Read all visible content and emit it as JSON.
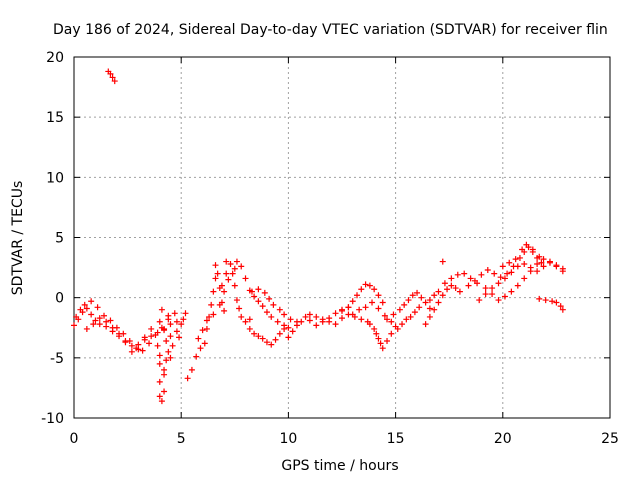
{
  "chart_data": {
    "type": "scatter",
    "title": "Day 186 of 2024, Sidereal Day-to-day VTEC variation (SDTVAR) for receiver flin",
    "xlabel": "GPS time / hours",
    "ylabel": "SDTVAR / TECUs",
    "xlim": [
      0,
      25
    ],
    "ylim": [
      -10,
      20
    ],
    "xticks": [
      0,
      5,
      10,
      15,
      20,
      25
    ],
    "yticks": [
      -10,
      -5,
      0,
      5,
      10,
      15,
      20
    ],
    "grid": true,
    "marker": "+",
    "color": "#ff0000",
    "series": [
      {
        "name": "SDTVAR",
        "points": [
          [
            1.6,
            18.8
          ],
          [
            1.7,
            18.6
          ],
          [
            1.8,
            18.3
          ],
          [
            1.9,
            18.0
          ],
          [
            0.0,
            -2.3
          ],
          [
            0.2,
            -1.8
          ],
          [
            0.4,
            -1.2
          ],
          [
            0.6,
            -0.9
          ],
          [
            0.8,
            -1.4
          ],
          [
            1.0,
            -1.9
          ],
          [
            1.2,
            -2.2
          ],
          [
            1.5,
            -2.4
          ],
          [
            1.8,
            -2.8
          ],
          [
            2.1,
            -3.2
          ],
          [
            2.4,
            -3.6
          ],
          [
            2.7,
            -4.0
          ],
          [
            3.0,
            -3.9
          ],
          [
            3.3,
            -3.5
          ],
          [
            3.6,
            -3.2
          ],
          [
            3.9,
            -2.9
          ],
          [
            4.2,
            -2.7
          ],
          [
            4.5,
            -2.2
          ],
          [
            4.8,
            -2.0
          ],
          [
            0.1,
            -1.6
          ],
          [
            0.3,
            -1.0
          ],
          [
            0.5,
            -0.6
          ],
          [
            0.8,
            -0.3
          ],
          [
            1.1,
            -0.8
          ],
          [
            1.4,
            -1.5
          ],
          [
            1.7,
            -1.9
          ],
          [
            2.0,
            -2.5
          ],
          [
            2.3,
            -3.0
          ],
          [
            2.6,
            -3.6
          ],
          [
            2.9,
            -4.2
          ],
          [
            3.2,
            -4.4
          ],
          [
            3.5,
            -3.8
          ],
          [
            3.8,
            -3.1
          ],
          [
            4.1,
            -2.5
          ],
          [
            4.4,
            -1.8
          ],
          [
            4.7,
            -1.3
          ],
          [
            0.6,
            -2.6
          ],
          [
            0.9,
            -2.2
          ],
          [
            1.2,
            -1.7
          ],
          [
            1.5,
            -2.0
          ],
          [
            1.8,
            -2.5
          ],
          [
            2.1,
            -3.0
          ],
          [
            2.4,
            -3.7
          ],
          [
            2.7,
            -4.5
          ],
          [
            3.0,
            -4.3
          ],
          [
            3.3,
            -3.3
          ],
          [
            3.6,
            -2.6
          ],
          [
            3.9,
            -4.0
          ],
          [
            4.0,
            -5.5
          ],
          [
            4.0,
            -7.0
          ],
          [
            4.0,
            -8.2
          ],
          [
            4.1,
            -8.6
          ],
          [
            4.2,
            -7.8
          ],
          [
            4.2,
            -6.4
          ],
          [
            4.3,
            -5.2
          ],
          [
            4.4,
            -4.5
          ],
          [
            4.5,
            -5.0
          ],
          [
            4.5,
            -3.2
          ],
          [
            4.1,
            -1.0
          ],
          [
            4.0,
            -2.0
          ],
          [
            4.2,
            -6.0
          ],
          [
            4.0,
            -4.8
          ],
          [
            4.3,
            -3.6
          ],
          [
            4.2,
            -2.6
          ],
          [
            4.4,
            -1.5
          ],
          [
            4.6,
            -4.0
          ],
          [
            4.8,
            -2.8
          ],
          [
            5.0,
            -2.2
          ],
          [
            5.1,
            -1.8
          ],
          [
            5.2,
            -1.3
          ],
          [
            4.9,
            -3.3
          ],
          [
            5.3,
            -6.7
          ],
          [
            5.5,
            -6.0
          ],
          [
            5.7,
            -4.9
          ],
          [
            5.9,
            -4.2
          ],
          [
            6.1,
            -3.8
          ],
          [
            6.2,
            -2.6
          ],
          [
            6.3,
            -1.6
          ],
          [
            6.4,
            -0.6
          ],
          [
            6.5,
            0.5
          ],
          [
            6.6,
            1.6
          ],
          [
            6.6,
            2.7
          ],
          [
            6.7,
            2.0
          ],
          [
            6.8,
            0.8
          ],
          [
            6.9,
            -0.4
          ],
          [
            7.0,
            -1.1
          ],
          [
            5.8,
            -3.4
          ],
          [
            6.0,
            -2.7
          ],
          [
            6.2,
            -1.9
          ],
          [
            6.5,
            -1.4
          ],
          [
            6.8,
            -0.6
          ],
          [
            7.0,
            0.5
          ],
          [
            7.1,
            2.0
          ],
          [
            7.1,
            3.0
          ],
          [
            7.3,
            2.8
          ],
          [
            7.4,
            2.0
          ],
          [
            7.5,
            1.0
          ],
          [
            7.6,
            -0.2
          ],
          [
            7.7,
            -0.9
          ],
          [
            7.8,
            -1.6
          ],
          [
            8.0,
            -2.0
          ],
          [
            8.2,
            -1.8
          ],
          [
            6.9,
            1.0
          ],
          [
            7.2,
            1.5
          ],
          [
            7.5,
            2.4
          ],
          [
            7.6,
            3.0
          ],
          [
            7.8,
            2.6
          ],
          [
            8.0,
            1.6
          ],
          [
            8.2,
            0.6
          ],
          [
            8.4,
            0.1
          ],
          [
            8.6,
            -0.3
          ],
          [
            8.8,
            -0.7
          ],
          [
            9.0,
            -1.2
          ],
          [
            9.2,
            -1.6
          ],
          [
            9.5,
            -2.0
          ],
          [
            9.8,
            -2.3
          ],
          [
            10.0,
            -2.5
          ],
          [
            8.3,
            0.5
          ],
          [
            8.6,
            0.7
          ],
          [
            8.9,
            0.4
          ],
          [
            9.1,
            -0.1
          ],
          [
            9.3,
            -0.6
          ],
          [
            9.6,
            -1.0
          ],
          [
            9.8,
            -1.4
          ],
          [
            10.1,
            -1.8
          ],
          [
            10.4,
            -2.0
          ],
          [
            8.2,
            -2.6
          ],
          [
            8.4,
            -3.0
          ],
          [
            8.6,
            -3.2
          ],
          [
            8.8,
            -3.4
          ],
          [
            9.0,
            -3.7
          ],
          [
            9.2,
            -3.9
          ],
          [
            9.4,
            -3.5
          ],
          [
            9.6,
            -3.0
          ],
          [
            9.8,
            -2.6
          ],
          [
            10.0,
            -3.3
          ],
          [
            10.2,
            -2.8
          ],
          [
            10.4,
            -2.3
          ],
          [
            10.6,
            -2.0
          ],
          [
            10.8,
            -1.6
          ],
          [
            11.0,
            -1.4
          ],
          [
            11.3,
            -1.6
          ],
          [
            11.6,
            -2.0
          ],
          [
            11.9,
            -1.7
          ],
          [
            12.2,
            -1.3
          ],
          [
            12.5,
            -1.0
          ],
          [
            12.8,
            -0.8
          ],
          [
            11.0,
            -1.9
          ],
          [
            11.3,
            -2.3
          ],
          [
            11.6,
            -1.8
          ],
          [
            11.9,
            -2.0
          ],
          [
            12.2,
            -2.2
          ],
          [
            12.5,
            -1.7
          ],
          [
            12.8,
            -1.4
          ],
          [
            13.1,
            -1.6
          ],
          [
            13.4,
            -1.8
          ],
          [
            13.7,
            -2.0
          ],
          [
            12.5,
            -1.1
          ],
          [
            12.8,
            -0.8
          ],
          [
            13.0,
            -0.3
          ],
          [
            13.2,
            0.2
          ],
          [
            13.4,
            0.7
          ],
          [
            13.6,
            1.1
          ],
          [
            13.8,
            1.0
          ],
          [
            14.0,
            0.7
          ],
          [
            14.2,
            0.2
          ],
          [
            14.4,
            -0.4
          ],
          [
            13.0,
            -1.4
          ],
          [
            13.3,
            -1.0
          ],
          [
            13.6,
            -0.8
          ],
          [
            13.9,
            -0.4
          ],
          [
            14.2,
            -0.9
          ],
          [
            14.5,
            -1.5
          ],
          [
            14.8,
            -2.0
          ],
          [
            13.8,
            -2.2
          ],
          [
            14.0,
            -2.6
          ],
          [
            14.1,
            -3.0
          ],
          [
            14.2,
            -3.4
          ],
          [
            14.3,
            -3.8
          ],
          [
            14.4,
            -4.2
          ],
          [
            14.6,
            -3.6
          ],
          [
            14.8,
            -3.0
          ],
          [
            15.0,
            -2.4
          ],
          [
            14.6,
            -1.8
          ],
          [
            14.9,
            -1.4
          ],
          [
            15.2,
            -1.0
          ],
          [
            15.4,
            -0.6
          ],
          [
            15.6,
            -0.2
          ],
          [
            15.8,
            0.2
          ],
          [
            16.0,
            0.4
          ],
          [
            16.2,
            0.0
          ],
          [
            16.4,
            -0.4
          ],
          [
            16.6,
            -0.9
          ],
          [
            15.1,
            -2.6
          ],
          [
            15.3,
            -2.2
          ],
          [
            15.5,
            -1.8
          ],
          [
            15.7,
            -1.6
          ],
          [
            15.9,
            -1.2
          ],
          [
            16.1,
            -0.8
          ],
          [
            16.4,
            -2.2
          ],
          [
            16.6,
            -1.6
          ],
          [
            16.8,
            -1.0
          ],
          [
            17.0,
            -0.4
          ],
          [
            17.2,
            0.2
          ],
          [
            17.4,
            0.7
          ],
          [
            17.6,
            1.0
          ],
          [
            17.8,
            0.8
          ],
          [
            18.0,
            0.5
          ],
          [
            16.6,
            -0.2
          ],
          [
            16.8,
            0.2
          ],
          [
            17.0,
            0.5
          ],
          [
            17.3,
            1.2
          ],
          [
            17.6,
            1.6
          ],
          [
            17.9,
            1.9
          ],
          [
            18.2,
            2.0
          ],
          [
            18.5,
            1.6
          ],
          [
            18.8,
            1.2
          ],
          [
            17.2,
            3.0
          ],
          [
            18.4,
            1.0
          ],
          [
            18.7,
            1.4
          ],
          [
            19.0,
            1.9
          ],
          [
            19.3,
            2.3
          ],
          [
            19.6,
            2.0
          ],
          [
            19.9,
            1.7
          ],
          [
            20.2,
            2.0
          ],
          [
            20.5,
            2.6
          ],
          [
            20.8,
            3.3
          ],
          [
            21.0,
            3.8
          ],
          [
            21.2,
            4.2
          ],
          [
            21.4,
            3.8
          ],
          [
            21.6,
            3.3
          ],
          [
            21.8,
            2.9
          ],
          [
            18.9,
            -0.2
          ],
          [
            19.2,
            0.3
          ],
          [
            19.5,
            0.8
          ],
          [
            19.8,
            1.2
          ],
          [
            20.1,
            1.6
          ],
          [
            20.4,
            2.1
          ],
          [
            20.7,
            2.6
          ],
          [
            21.0,
            2.8
          ],
          [
            21.3,
            2.5
          ],
          [
            21.6,
            2.2
          ],
          [
            21.9,
            2.6
          ],
          [
            22.2,
            2.9
          ],
          [
            22.5,
            2.7
          ],
          [
            22.8,
            2.4
          ],
          [
            19.2,
            0.8
          ],
          [
            19.5,
            0.3
          ],
          [
            19.8,
            -0.2
          ],
          [
            20.1,
            0.1
          ],
          [
            20.4,
            0.5
          ],
          [
            20.7,
            1.0
          ],
          [
            21.0,
            1.6
          ],
          [
            21.3,
            2.2
          ],
          [
            21.6,
            2.8
          ],
          [
            21.9,
            3.2
          ],
          [
            22.2,
            3.0
          ],
          [
            22.5,
            2.6
          ],
          [
            22.8,
            2.2
          ],
          [
            20.0,
            2.6
          ],
          [
            20.3,
            2.9
          ],
          [
            20.6,
            3.2
          ],
          [
            20.9,
            4.0
          ],
          [
            21.1,
            4.4
          ],
          [
            21.4,
            4.0
          ],
          [
            21.7,
            3.4
          ],
          [
            21.7,
            -0.1
          ],
          [
            22.0,
            -0.2
          ],
          [
            22.3,
            -0.3
          ],
          [
            22.5,
            -0.4
          ],
          [
            22.7,
            -0.7
          ],
          [
            22.8,
            -1.0
          ]
        ]
      }
    ]
  }
}
